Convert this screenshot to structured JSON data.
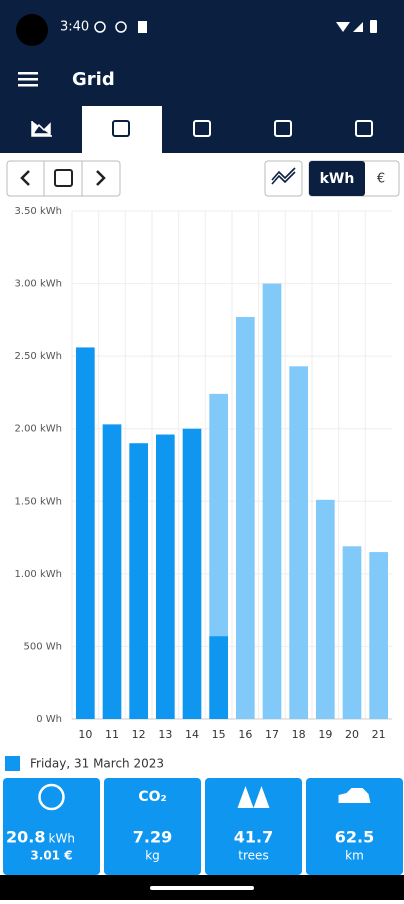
{
  "status_bar": {
    "time": "3:40"
  },
  "header": {
    "title": "Grid"
  },
  "toolbar": {
    "unit_kwh": "kWh",
    "unit_euro": "€"
  },
  "chart_data": {
    "type": "bar",
    "categories": [
      "10",
      "11",
      "12",
      "13",
      "14",
      "15",
      "16",
      "17",
      "18",
      "19",
      "20",
      "21"
    ],
    "series": [
      {
        "name": "Friday, 31 March 2023",
        "color": "#0f96f0",
        "values": [
          2.56,
          2.03,
          1.9,
          1.96,
          2.0,
          0.57,
          null,
          null,
          null,
          null,
          null,
          null
        ]
      },
      {
        "color": "#80c9f8",
        "values": [
          null,
          null,
          null,
          null,
          null,
          2.24,
          2.77,
          3.0,
          2.43,
          1.51,
          1.19,
          1.15
        ]
      }
    ],
    "ylim": [
      0,
      3.5
    ],
    "yticks": [
      {
        "value": 0,
        "label": "0 Wh"
      },
      {
        "value": 0.5,
        "label": "500 Wh"
      },
      {
        "value": 1,
        "label": "1.00 kWh"
      },
      {
        "value": 1.5,
        "label": "1.50 kWh"
      },
      {
        "value": 2,
        "label": "2.00 kWh"
      },
      {
        "value": 2.5,
        "label": "2.50 kWh"
      },
      {
        "value": 3,
        "label": "3.00 kWh"
      },
      {
        "value": 3.5,
        "label": "3.50 kWh"
      }
    ],
    "grid": true
  },
  "stats": [
    {
      "value": "20.8",
      "unit": "kWh",
      "secondary": "3.01 €"
    },
    {
      "icon": "CO₂",
      "value": "7.29",
      "unit": "kg"
    },
    {
      "value": "41.7",
      "unit": "trees"
    },
    {
      "value": "62.5",
      "unit": "km"
    }
  ]
}
